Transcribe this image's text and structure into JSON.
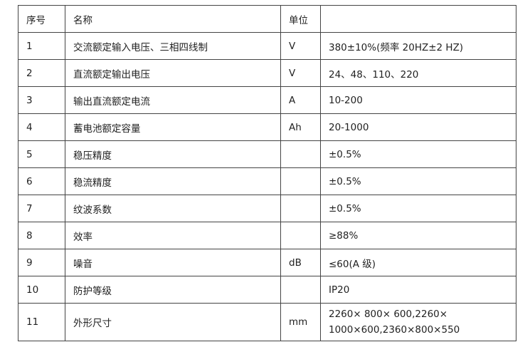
{
  "table": {
    "headers": [
      "序号",
      "名称",
      "单位",
      ""
    ],
    "rows": [
      [
        "1",
        "交流额定输入电压、三相四线制",
        "V",
        "380±10%(频率 20HZ±2 HZ)"
      ],
      [
        "2",
        "直流额定输出电压",
        "V",
        "24、48、110、220"
      ],
      [
        "3",
        "输出直流额定电流",
        "A",
        "10-200"
      ],
      [
        "4",
        "蓄电池额定容量",
        "Ah",
        "20-1000"
      ],
      [
        "5",
        "稳压精度",
        "",
        "±0.5%"
      ],
      [
        "6",
        "稳流精度",
        "",
        "±0.5%"
      ],
      [
        "7",
        "纹波系数",
        "",
        "±0.5%"
      ],
      [
        "8",
        "效率",
        "",
        "≥88%"
      ],
      [
        "9",
        "噪音",
        "dB",
        "≤60(A 级)"
      ],
      [
        "10",
        "防护等级",
        "",
        "IP20"
      ],
      [
        "11",
        "外形尺寸",
        "mm",
        "2260× 800× 600,2260× 1000×600,2360×800×550"
      ]
    ]
  }
}
